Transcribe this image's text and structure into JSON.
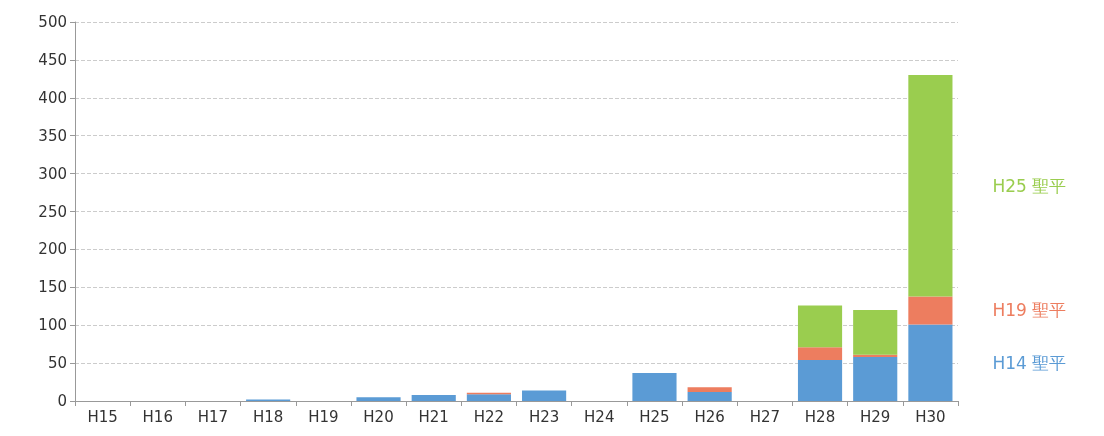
{
  "chart_data": {
    "type": "bar",
    "stacked": true,
    "categories": [
      "H15",
      "H16",
      "H17",
      "H18",
      "H19",
      "H20",
      "H21",
      "H22",
      "H23",
      "H24",
      "H25",
      "H26",
      "H27",
      "H28",
      "H29",
      "H30"
    ],
    "series": [
      {
        "name": "H14 聖平",
        "color": "#5b9bd5",
        "values": [
          0,
          0,
          0,
          2,
          0,
          5,
          8,
          9,
          14,
          0,
          37,
          12,
          0,
          54,
          58,
          101
        ]
      },
      {
        "name": "H19 聖平",
        "color": "#ed7d5f",
        "values": [
          0,
          0,
          0,
          0,
          0,
          0,
          0,
          2,
          0,
          0,
          0,
          6,
          0,
          17,
          3,
          37
        ]
      },
      {
        "name": "H25 聖平",
        "color": "#9acd4f",
        "values": [
          0,
          0,
          0,
          0,
          0,
          0,
          0,
          0,
          0,
          0,
          0,
          0,
          0,
          55,
          59,
          292
        ]
      }
    ],
    "ylim": [
      0,
      500
    ],
    "yticks": [
      0,
      50,
      100,
      150,
      200,
      250,
      300,
      350,
      400,
      450,
      500
    ],
    "grid": "y",
    "legend": false
  }
}
